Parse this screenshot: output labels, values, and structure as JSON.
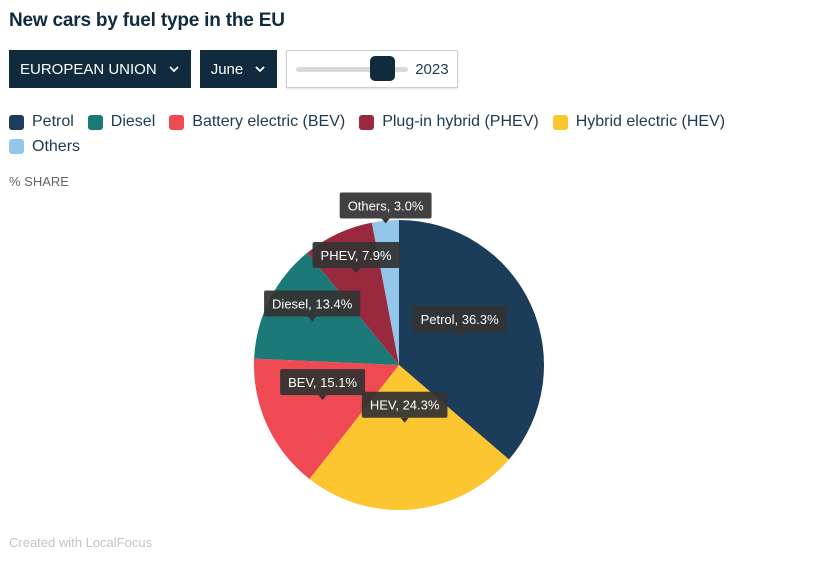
{
  "title": "New cars by fuel type in the EU",
  "controls": {
    "region_label": "EUROPEAN UNION",
    "month_label": "June",
    "year_value": "2023",
    "year_slider_position": 0.85
  },
  "ylabel": "% SHARE",
  "footer": "Created with LocalFocus",
  "icons": {
    "dropdown": "chevron-down-icon"
  },
  "chart_data": {
    "type": "pie",
    "title": "New cars by fuel type in the EU",
    "unit": "%",
    "legend_position": "top-left",
    "slices": [
      {
        "name": "Petrol",
        "label": "Petrol",
        "value": 36.3,
        "color": "#1c3d5a"
      },
      {
        "name": "Hybrid electric (HEV)",
        "label": "HEV",
        "value": 24.3,
        "color": "#fbc630"
      },
      {
        "name": "Battery electric (BEV)",
        "label": "BEV",
        "value": 15.1,
        "color": "#ef4a53"
      },
      {
        "name": "Diesel",
        "label": "Diesel",
        "value": 13.4,
        "color": "#1b7a78"
      },
      {
        "name": "Plug-in hybrid (PHEV)",
        "label": "PHEV",
        "value": 7.9,
        "color": "#99293f"
      },
      {
        "name": "Others",
        "label": "Others",
        "value": 3.0,
        "color": "#93c6ea"
      }
    ],
    "legend": [
      {
        "name": "Petrol",
        "color": "#1c3d5a"
      },
      {
        "name": "Diesel",
        "color": "#1b7a78"
      },
      {
        "name": "Battery electric (BEV)",
        "color": "#ef4a53"
      },
      {
        "name": "Plug-in hybrid (PHEV)",
        "color": "#99293f"
      },
      {
        "name": "Hybrid electric (HEV)",
        "color": "#fbc630"
      },
      {
        "name": "Others",
        "color": "#93c6ea"
      }
    ]
  }
}
